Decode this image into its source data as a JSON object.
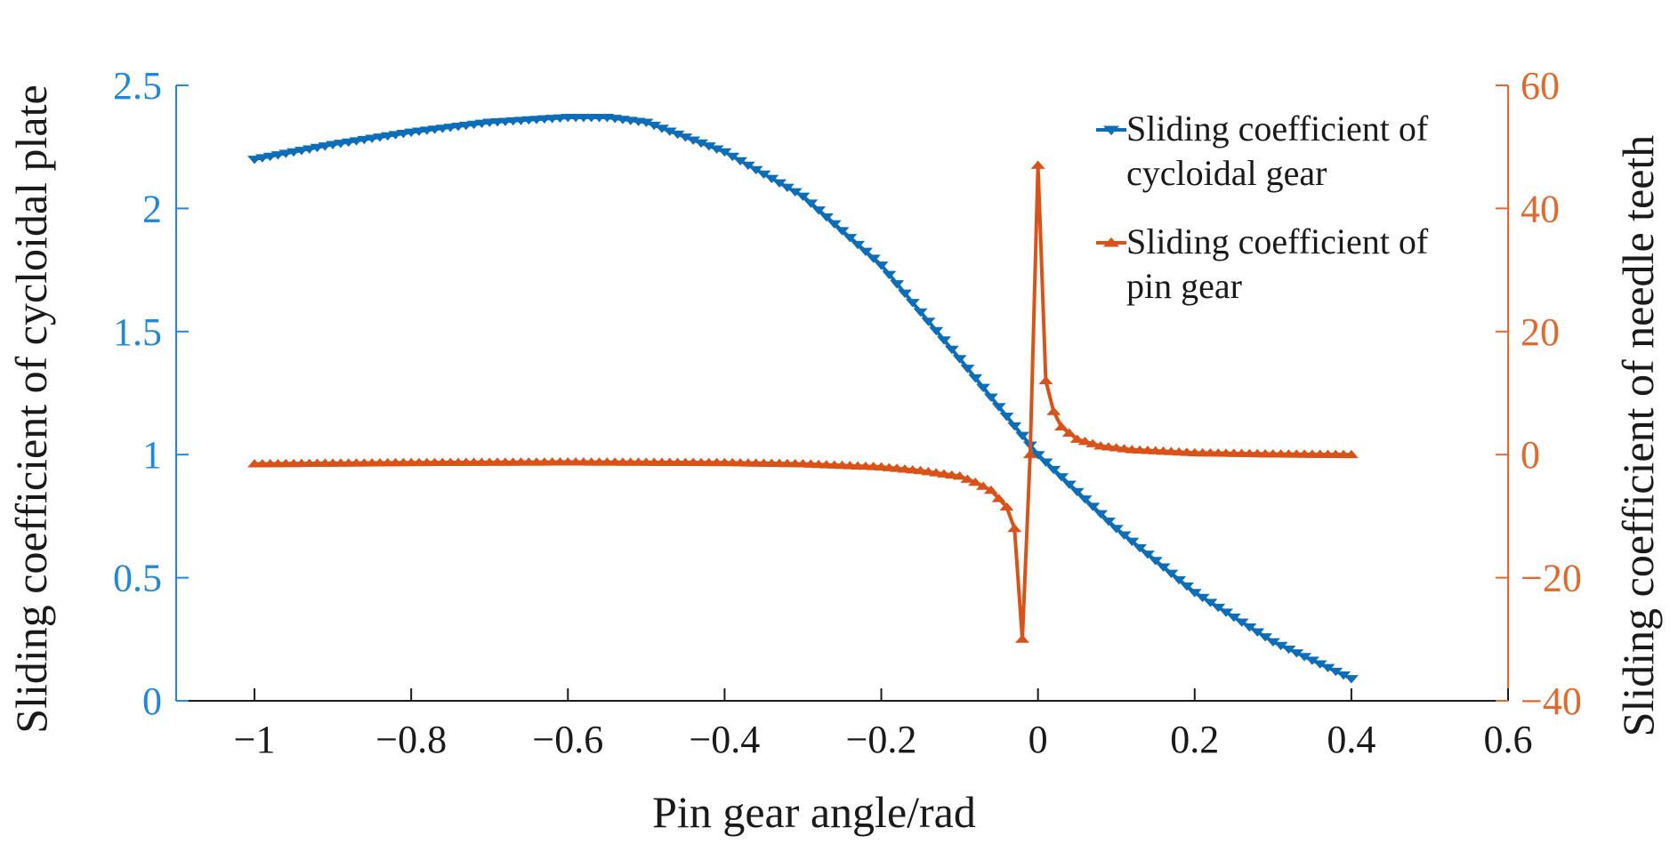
{
  "chart_data": {
    "type": "line",
    "title": "",
    "xlabel": "Pin gear angle/rad",
    "ylabel_left": "Sliding coefficient of cycloidal plate",
    "ylabel_right": "Sliding coefficient of needle teeth",
    "xlim": [
      -1.1,
      0.6
    ],
    "ylim_left": [
      0,
      2.5
    ],
    "ylim_right": [
      -40,
      60
    ],
    "x_ticks": [
      -1,
      -0.8,
      -0.6,
      -0.4,
      -0.2,
      0,
      0.2,
      0.4,
      0.6
    ],
    "x_tick_labels": [
      "−1",
      "−0.8",
      "−0.6",
      "−0.4",
      "−0.2",
      "0",
      "0.2",
      "0.4",
      "0.6"
    ],
    "y_left_ticks": [
      0,
      0.5,
      1,
      1.5,
      2,
      2.5
    ],
    "y_left_tick_labels": [
      "0",
      "0.5",
      "1",
      "1.5",
      "2",
      "2.5"
    ],
    "y_right_ticks": [
      -40,
      -20,
      0,
      20,
      40,
      60
    ],
    "y_right_tick_labels": [
      "−40",
      "−20",
      "0",
      "20",
      "40",
      "60"
    ],
    "grid": false,
    "legend_position": "top-right",
    "colors": {
      "left_axis": "#1f88d9",
      "right_axis": "#e3692a",
      "series_cycloidal": "#0c6db8",
      "series_pin": "#d95319"
    },
    "series": [
      {
        "name": "Sliding coefficient of cycloidal gear",
        "legend_lines": [
          "Sliding coefficient of",
          "cycloidal gear"
        ],
        "axis": "left",
        "marker": "triangle-down",
        "x": [
          -1.0,
          -0.9,
          -0.8,
          -0.7,
          -0.6,
          -0.55,
          -0.5,
          -0.4,
          -0.3,
          -0.2,
          -0.1,
          0.0,
          0.1,
          0.2,
          0.3,
          0.4
        ],
        "y": [
          2.2,
          2.26,
          2.31,
          2.35,
          2.37,
          2.37,
          2.35,
          2.23,
          2.05,
          1.77,
          1.39,
          1.0,
          0.7,
          0.44,
          0.24,
          0.09
        ]
      },
      {
        "name": "Sliding coefficient of pin gear",
        "legend_lines": [
          "Sliding coefficient of",
          "pin gear"
        ],
        "axis": "right",
        "marker": "triangle-up",
        "x": [
          -1.0,
          -0.8,
          -0.6,
          -0.4,
          -0.3,
          -0.2,
          -0.15,
          -0.1,
          -0.08,
          -0.06,
          -0.04,
          -0.03,
          -0.02,
          -0.01,
          0.0,
          0.01,
          0.02,
          0.03,
          0.05,
          0.08,
          0.12,
          0.2,
          0.3,
          0.4
        ],
        "y": [
          -1.5,
          -1.3,
          -1.2,
          -1.3,
          -1.5,
          -2.0,
          -2.6,
          -3.5,
          -4.5,
          -5.8,
          -8.5,
          -12,
          -30,
          0,
          47,
          12,
          7,
          4.5,
          2.5,
          1.4,
          0.8,
          0.3,
          0.1,
          0.0
        ]
      }
    ]
  }
}
